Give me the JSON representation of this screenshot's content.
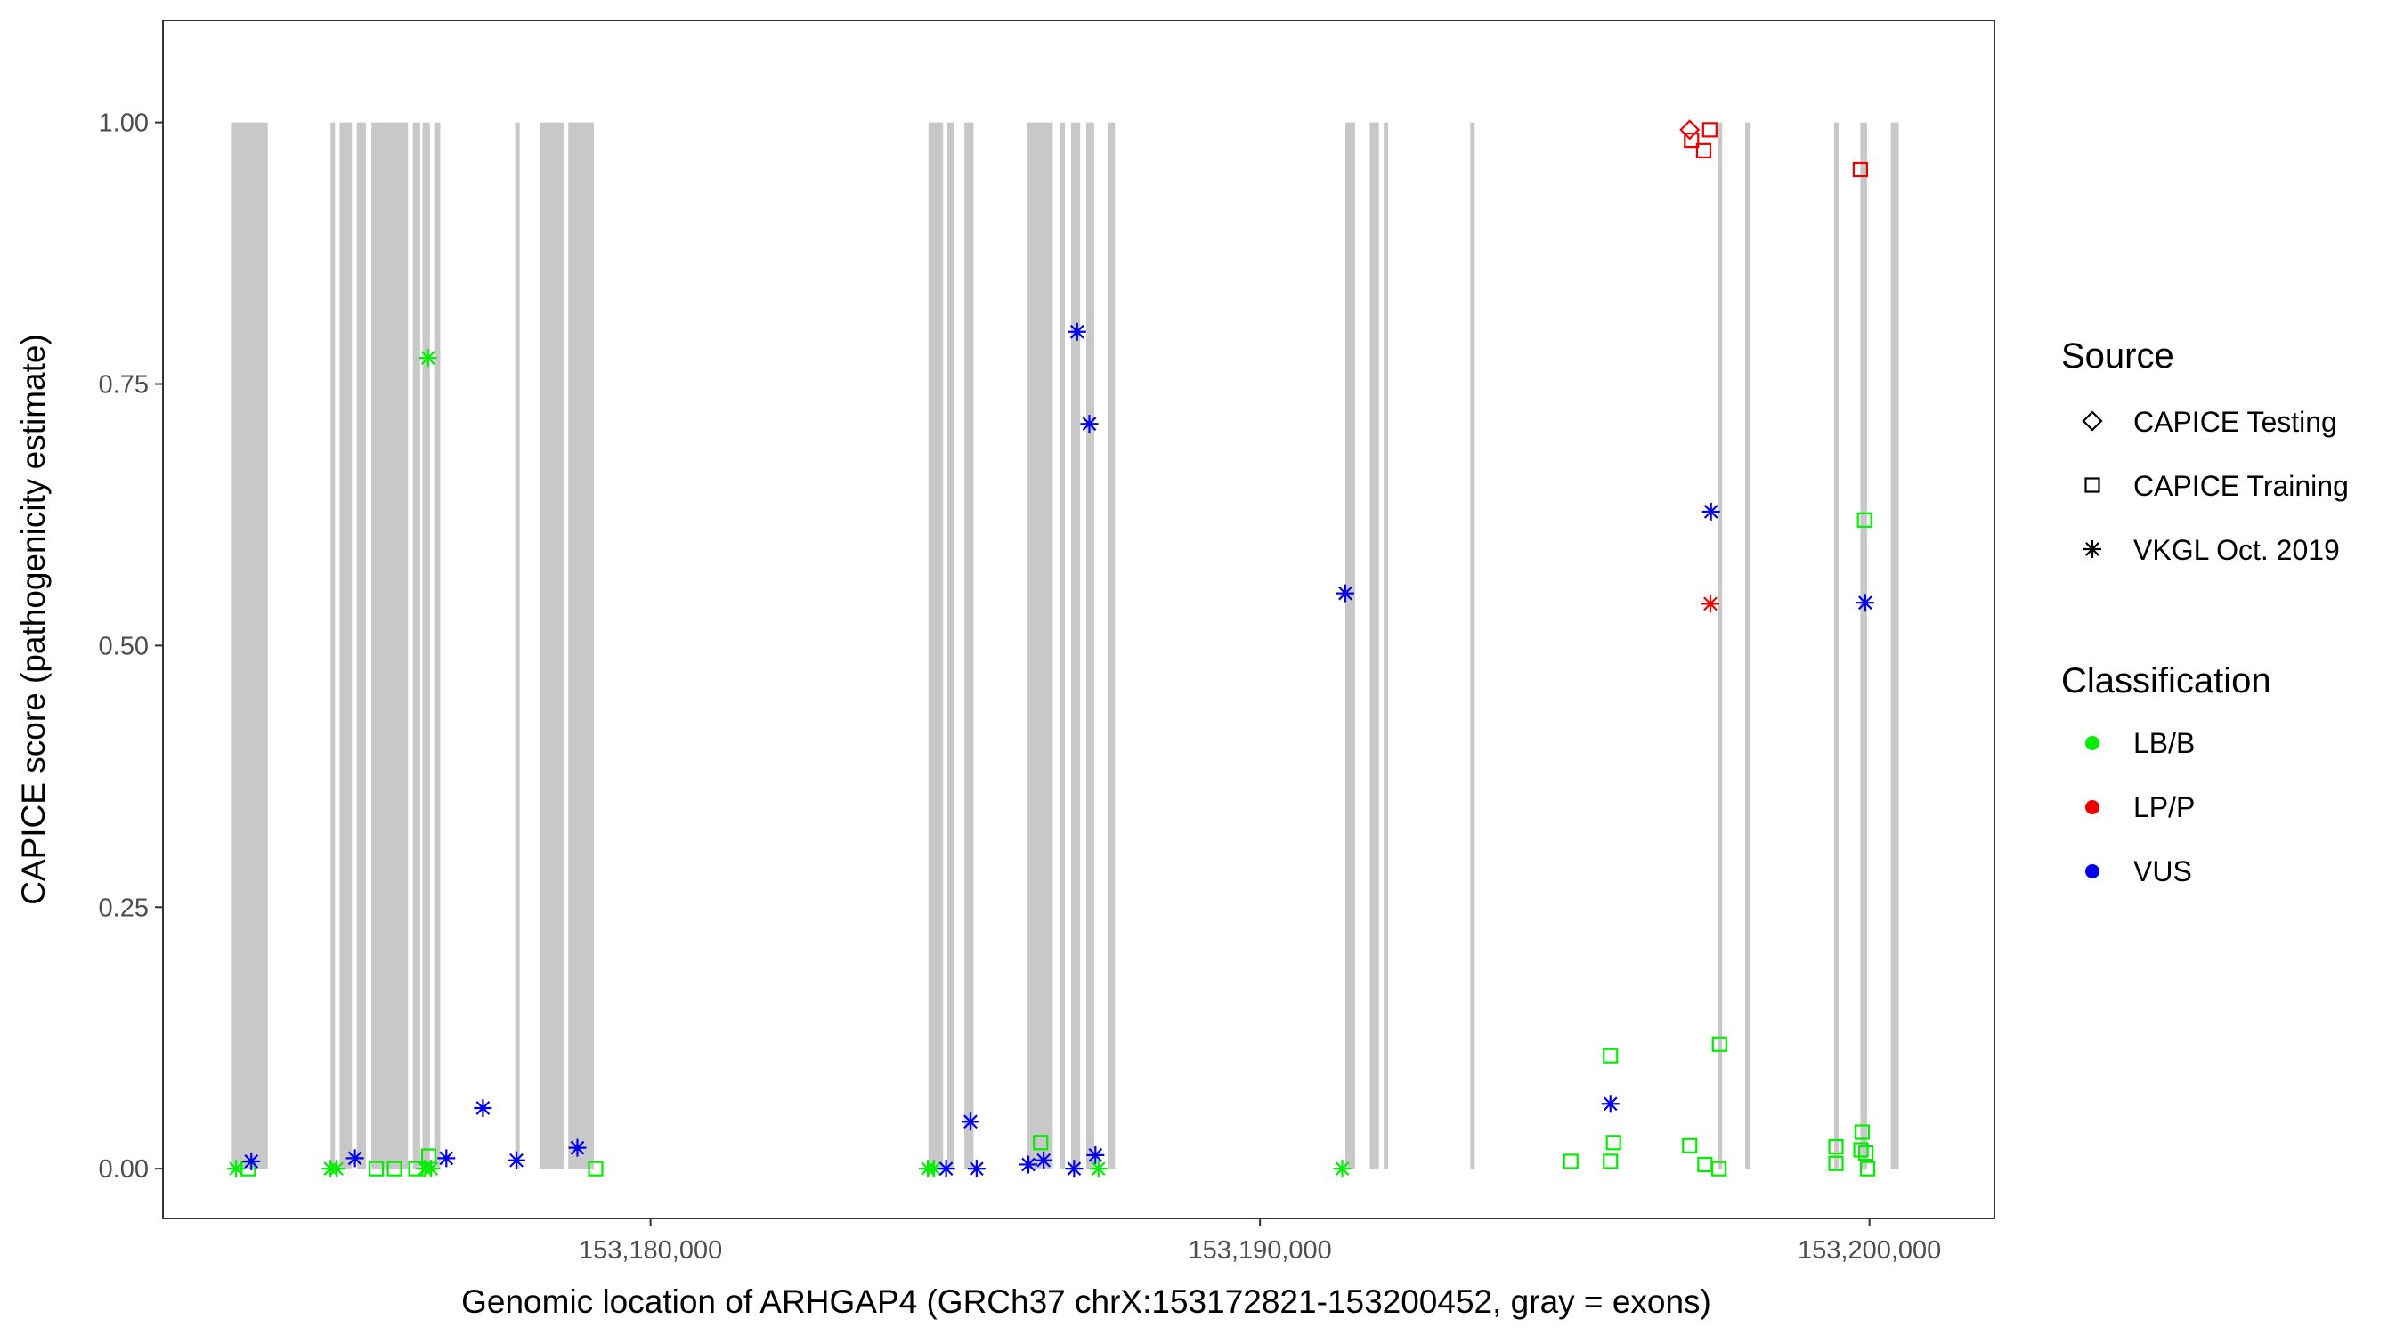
{
  "chart_data": {
    "type": "scatter",
    "title": "",
    "xlabel": "Genomic location of ARHGAP4 (GRCh37 chrX:153172821-153200452, gray = exons)",
    "ylabel": "CAPICE score (pathogenicity estimate)",
    "xlim": [
      153172000,
      153202050
    ],
    "ylim": [
      -0.0475,
      1.0975
    ],
    "grid": false,
    "x_ticks": [
      153180000,
      153190000,
      153200000
    ],
    "x_tick_labels": [
      "153,180,000",
      "153,190,000",
      "153,200,000"
    ],
    "y_ticks": [
      0,
      0.25,
      0.5,
      0.75,
      1.0
    ],
    "y_tick_labels": [
      "0.00",
      "0.25",
      "0.50",
      "0.75",
      "1.00"
    ],
    "exons": [
      [
        153173130,
        153173720
      ],
      [
        153174750,
        153174800
      ],
      [
        153174900,
        153175100
      ],
      [
        153175180,
        153175330
      ],
      [
        153175420,
        153176020
      ],
      [
        153176100,
        153176220
      ],
      [
        153176260,
        153176380
      ],
      [
        153176450,
        153176550
      ],
      [
        153177780,
        153177850
      ],
      [
        153178180,
        153178590
      ],
      [
        153178650,
        153179070
      ],
      [
        153184560,
        153184800
      ],
      [
        153184870,
        153184980
      ],
      [
        153185150,
        153185300
      ],
      [
        153186170,
        153186600
      ],
      [
        153186720,
        153186800
      ],
      [
        153186900,
        153187050
      ],
      [
        153187150,
        153187280
      ],
      [
        153187500,
        153187620
      ],
      [
        153191400,
        153191560
      ],
      [
        153191800,
        153191950
      ],
      [
        153192030,
        153192080
      ],
      [
        153193450,
        153193520
      ],
      [
        153197510,
        153197580
      ],
      [
        153197960,
        153198050
      ],
      [
        153199420,
        153199480
      ],
      [
        153199850,
        153199960
      ],
      [
        153200350,
        153200480
      ]
    ],
    "legend": {
      "source_title": "Source",
      "source_items": [
        {
          "label": "CAPICE Testing",
          "shape": "diamond"
        },
        {
          "label": "CAPICE Training",
          "shape": "square"
        },
        {
          "label": "VKGL Oct. 2019",
          "shape": "asterisk"
        }
      ],
      "class_title": "Classification",
      "class_items": [
        {
          "label": "LB/B",
          "color": "#00ee00"
        },
        {
          "label": "LP/P",
          "color": "#ee0000"
        },
        {
          "label": "VUS",
          "color": "#0000ee"
        }
      ],
      "placement": "right"
    },
    "series": [
      {
        "name": "LB/B",
        "color": "#00ee00",
        "points": [
          {
            "x": 153173200,
            "y": 0.0,
            "shape": "asterisk"
          },
          {
            "x": 153173400,
            "y": 0.0,
            "shape": "square"
          },
          {
            "x": 153174750,
            "y": 0.0,
            "shape": "asterisk"
          },
          {
            "x": 153174850,
            "y": 0.0,
            "shape": "asterisk"
          },
          {
            "x": 153175500,
            "y": 0.0,
            "shape": "square"
          },
          {
            "x": 153175800,
            "y": 0.0,
            "shape": "square"
          },
          {
            "x": 153176150,
            "y": 0.0,
            "shape": "square"
          },
          {
            "x": 153176300,
            "y": 0.0,
            "shape": "asterisk"
          },
          {
            "x": 153176400,
            "y": 0.0,
            "shape": "asterisk"
          },
          {
            "x": 153176360,
            "y": 0.012,
            "shape": "square"
          },
          {
            "x": 153176350,
            "y": 0.775,
            "shape": "asterisk"
          },
          {
            "x": 153179100,
            "y": 0.0,
            "shape": "square"
          },
          {
            "x": 153184550,
            "y": 0.0,
            "shape": "asterisk"
          },
          {
            "x": 153184650,
            "y": 0.0,
            "shape": "asterisk"
          },
          {
            "x": 153186400,
            "y": 0.025,
            "shape": "square"
          },
          {
            "x": 153187350,
            "y": 0.0,
            "shape": "asterisk"
          },
          {
            "x": 153191350,
            "y": 0.0,
            "shape": "asterisk"
          },
          {
            "x": 153195100,
            "y": 0.007,
            "shape": "square"
          },
          {
            "x": 153195750,
            "y": 0.007,
            "shape": "square"
          },
          {
            "x": 153195750,
            "y": 0.108,
            "shape": "square"
          },
          {
            "x": 153195800,
            "y": 0.025,
            "shape": "square"
          },
          {
            "x": 153197050,
            "y": 0.022,
            "shape": "square"
          },
          {
            "x": 153197300,
            "y": 0.004,
            "shape": "square"
          },
          {
            "x": 153197530,
            "y": 0.0,
            "shape": "square"
          },
          {
            "x": 153197540,
            "y": 0.119,
            "shape": "square"
          },
          {
            "x": 153199450,
            "y": 0.005,
            "shape": "square"
          },
          {
            "x": 153199450,
            "y": 0.021,
            "shape": "square"
          },
          {
            "x": 153199860,
            "y": 0.018,
            "shape": "square"
          },
          {
            "x": 153199880,
            "y": 0.035,
            "shape": "square"
          },
          {
            "x": 153199940,
            "y": 0.015,
            "shape": "square"
          },
          {
            "x": 153199970,
            "y": 0.0,
            "shape": "square"
          },
          {
            "x": 153199920,
            "y": 0.62,
            "shape": "square"
          }
        ]
      },
      {
        "name": "LP/P",
        "color": "#ee0000",
        "points": [
          {
            "x": 153197050,
            "y": 0.993,
            "shape": "diamond"
          },
          {
            "x": 153197080,
            "y": 0.983,
            "shape": "square"
          },
          {
            "x": 153197380,
            "y": 0.993,
            "shape": "square"
          },
          {
            "x": 153197280,
            "y": 0.973,
            "shape": "square"
          },
          {
            "x": 153199850,
            "y": 0.955,
            "shape": "square"
          },
          {
            "x": 153197390,
            "y": 0.54,
            "shape": "asterisk"
          }
        ]
      },
      {
        "name": "VUS",
        "color": "#0000ee",
        "points": [
          {
            "x": 153173450,
            "y": 0.007,
            "shape": "asterisk"
          },
          {
            "x": 153175150,
            "y": 0.01,
            "shape": "asterisk"
          },
          {
            "x": 153176650,
            "y": 0.01,
            "shape": "asterisk"
          },
          {
            "x": 153177250,
            "y": 0.058,
            "shape": "asterisk"
          },
          {
            "x": 153178800,
            "y": 0.02,
            "shape": "asterisk"
          },
          {
            "x": 153177800,
            "y": 0.008,
            "shape": "asterisk"
          },
          {
            "x": 153184850,
            "y": 0.0,
            "shape": "asterisk"
          },
          {
            "x": 153185250,
            "y": 0.045,
            "shape": "asterisk"
          },
          {
            "x": 153185350,
            "y": 0.0,
            "shape": "asterisk"
          },
          {
            "x": 153186200,
            "y": 0.004,
            "shape": "asterisk"
          },
          {
            "x": 153186450,
            "y": 0.008,
            "shape": "asterisk"
          },
          {
            "x": 153186950,
            "y": 0.0,
            "shape": "asterisk"
          },
          {
            "x": 153187300,
            "y": 0.013,
            "shape": "asterisk"
          },
          {
            "x": 153187000,
            "y": 0.8,
            "shape": "asterisk"
          },
          {
            "x": 153187200,
            "y": 0.712,
            "shape": "asterisk"
          },
          {
            "x": 153191400,
            "y": 0.55,
            "shape": "asterisk"
          },
          {
            "x": 153195750,
            "y": 0.062,
            "shape": "asterisk"
          },
          {
            "x": 153197400,
            "y": 0.628,
            "shape": "asterisk"
          },
          {
            "x": 153199930,
            "y": 0.541,
            "shape": "asterisk"
          }
        ]
      }
    ]
  }
}
